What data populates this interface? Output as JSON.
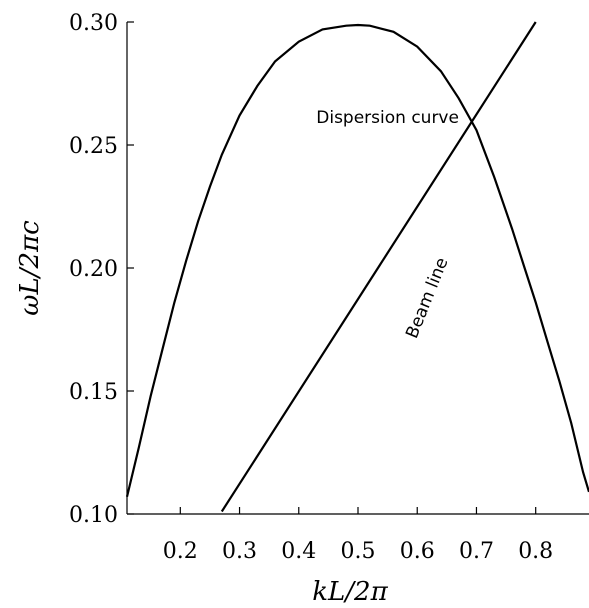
{
  "chart_data": {
    "type": "line",
    "title": "",
    "xlabel": "kL/2π",
    "ylabel": "ωL/2πc",
    "xlim": [
      0.11,
      0.89
    ],
    "ylim": [
      0.1,
      0.3
    ],
    "x_ticks": [
      0.2,
      0.3,
      0.4,
      0.5,
      0.6,
      0.7,
      0.8
    ],
    "x_tick_labels": [
      "0.2",
      "0.3",
      "0.4",
      "0.5",
      "0.6",
      "0.7",
      "0.8"
    ],
    "y_ticks": [
      0.1,
      0.15,
      0.2,
      0.25,
      0.3
    ],
    "y_tick_labels": [
      "0.10",
      "0.15",
      "0.20",
      "0.25",
      "0.30"
    ],
    "grid": false,
    "series": [
      {
        "name": "Dispersion curve",
        "x": [
          0.11,
          0.13,
          0.15,
          0.17,
          0.19,
          0.21,
          0.23,
          0.25,
          0.27,
          0.3,
          0.33,
          0.36,
          0.4,
          0.44,
          0.48,
          0.5,
          0.52,
          0.56,
          0.6,
          0.64,
          0.67,
          0.7,
          0.73,
          0.76,
          0.78,
          0.8,
          0.82,
          0.84,
          0.86,
          0.88,
          0.89
        ],
        "y": [
          0.107,
          0.127,
          0.148,
          0.167,
          0.186,
          0.203,
          0.219,
          0.233,
          0.246,
          0.262,
          0.274,
          0.284,
          0.292,
          0.297,
          0.2985,
          0.2988,
          0.2985,
          0.296,
          0.29,
          0.28,
          0.269,
          0.256,
          0.237,
          0.216,
          0.201,
          0.186,
          0.17,
          0.154,
          0.137,
          0.117,
          0.109
        ]
      },
      {
        "name": "Beam line",
        "x": [
          0.27,
          0.8
        ],
        "y": [
          0.101,
          0.3
        ]
      }
    ],
    "annotations": [
      {
        "text": "Dispersion curve",
        "x": 0.55,
        "y": 0.259
      },
      {
        "text": "Beam line",
        "x": 0.625,
        "y": 0.187,
        "rotation": -68
      }
    ]
  }
}
